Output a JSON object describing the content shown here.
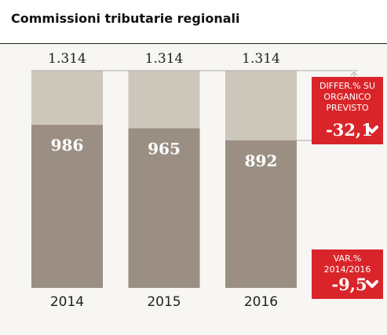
{
  "chart_data": {
    "type": "bar",
    "title": "Commissioni tributarie regionali",
    "categories": [
      "2014",
      "2015",
      "2016"
    ],
    "series": [
      {
        "color": "#cdc6bb",
        "values": [
          1314,
          1314,
          1314
        ],
        "value_labels": [
          "1.314",
          "1.314",
          "1.314"
        ]
      },
      {
        "color": "#9b8f83",
        "values": [
          986,
          965,
          892
        ]
      }
    ],
    "ylim": [
      0,
      1314
    ],
    "annotations": [
      {
        "lines": [
          "DIFFER.% SU",
          "ORGANICO",
          "PREVISTO"
        ],
        "text": "-32,1",
        "color": "#d9252a"
      },
      {
        "lines": [
          "VAR.%",
          "2014/2016"
        ],
        "text": "-9,5",
        "color": "#d9252a"
      }
    ]
  }
}
